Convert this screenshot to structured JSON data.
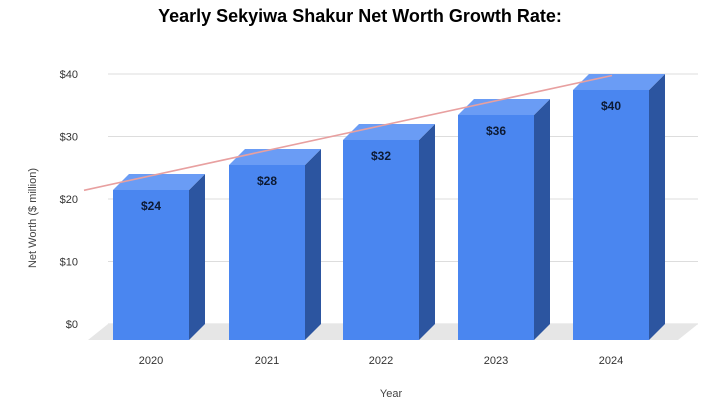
{
  "chart_data": {
    "type": "bar",
    "title": "Yearly Sekyiwa Shakur Net Worth Growth Rate:",
    "xlabel": "Year",
    "ylabel": "Net Worth ($ million)",
    "categories": [
      "2020",
      "2021",
      "2022",
      "2023",
      "2024"
    ],
    "values": [
      24,
      28,
      32,
      36,
      40
    ],
    "data_labels": [
      "$24",
      "$28",
      "$32",
      "$36",
      "$40"
    ],
    "ylim": [
      0,
      40
    ],
    "yticks": [
      0,
      10,
      20,
      30,
      40
    ],
    "ytick_labels": [
      "$0",
      "$10",
      "$20",
      "$30",
      "$40"
    ],
    "grid": true,
    "legend": "none",
    "trendline": true,
    "colors": {
      "bar_front": "#4a86f0",
      "bar_side": "#2c55a0",
      "bar_top": "#6a9cf5",
      "floor": "#e6e6e6",
      "gridline": "#dddddd",
      "trendline": "#e8a0a0"
    }
  }
}
